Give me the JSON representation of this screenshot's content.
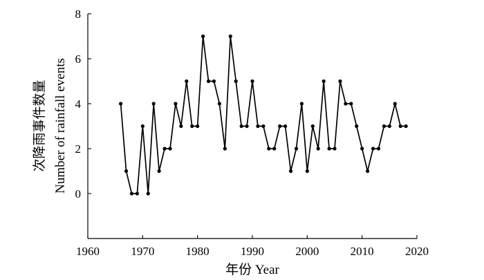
{
  "chart_data": {
    "type": "line",
    "xlabel": "年份 Year",
    "ylabel": [
      "次降雨事件数量",
      "Number of rainfall events"
    ],
    "xlim": [
      1960,
      2020
    ],
    "ylim": [
      -2,
      8
    ],
    "xticks": [
      1960,
      1970,
      1980,
      1990,
      2000,
      2010,
      2020
    ],
    "yticks": [
      0,
      2,
      4,
      6,
      8
    ],
    "grid": false,
    "line_color": "#000000",
    "x": [
      1966,
      1967,
      1968,
      1969,
      1970,
      1971,
      1972,
      1973,
      1974,
      1975,
      1976,
      1977,
      1978,
      1979,
      1980,
      1981,
      1982,
      1983,
      1984,
      1985,
      1986,
      1987,
      1988,
      1989,
      1990,
      1991,
      1992,
      1993,
      1994,
      1995,
      1996,
      1997,
      1998,
      1999,
      2000,
      2001,
      2002,
      2003,
      2004,
      2005,
      2006,
      2007,
      2008,
      2009,
      2010,
      2011,
      2012,
      2013,
      2014,
      2015,
      2016,
      2017,
      2018
    ],
    "y": [
      4,
      1,
      0,
      0,
      3,
      0,
      4,
      1,
      2,
      2,
      4,
      3,
      5,
      3,
      3,
      7,
      5,
      5,
      4,
      2,
      7,
      5,
      3,
      3,
      5,
      3,
      3,
      2,
      2,
      3,
      3,
      1,
      2,
      4,
      1,
      3,
      2,
      5,
      2,
      2,
      5,
      4,
      4,
      3,
      2,
      1,
      2,
      2,
      3,
      3,
      4,
      3,
      3
    ]
  }
}
